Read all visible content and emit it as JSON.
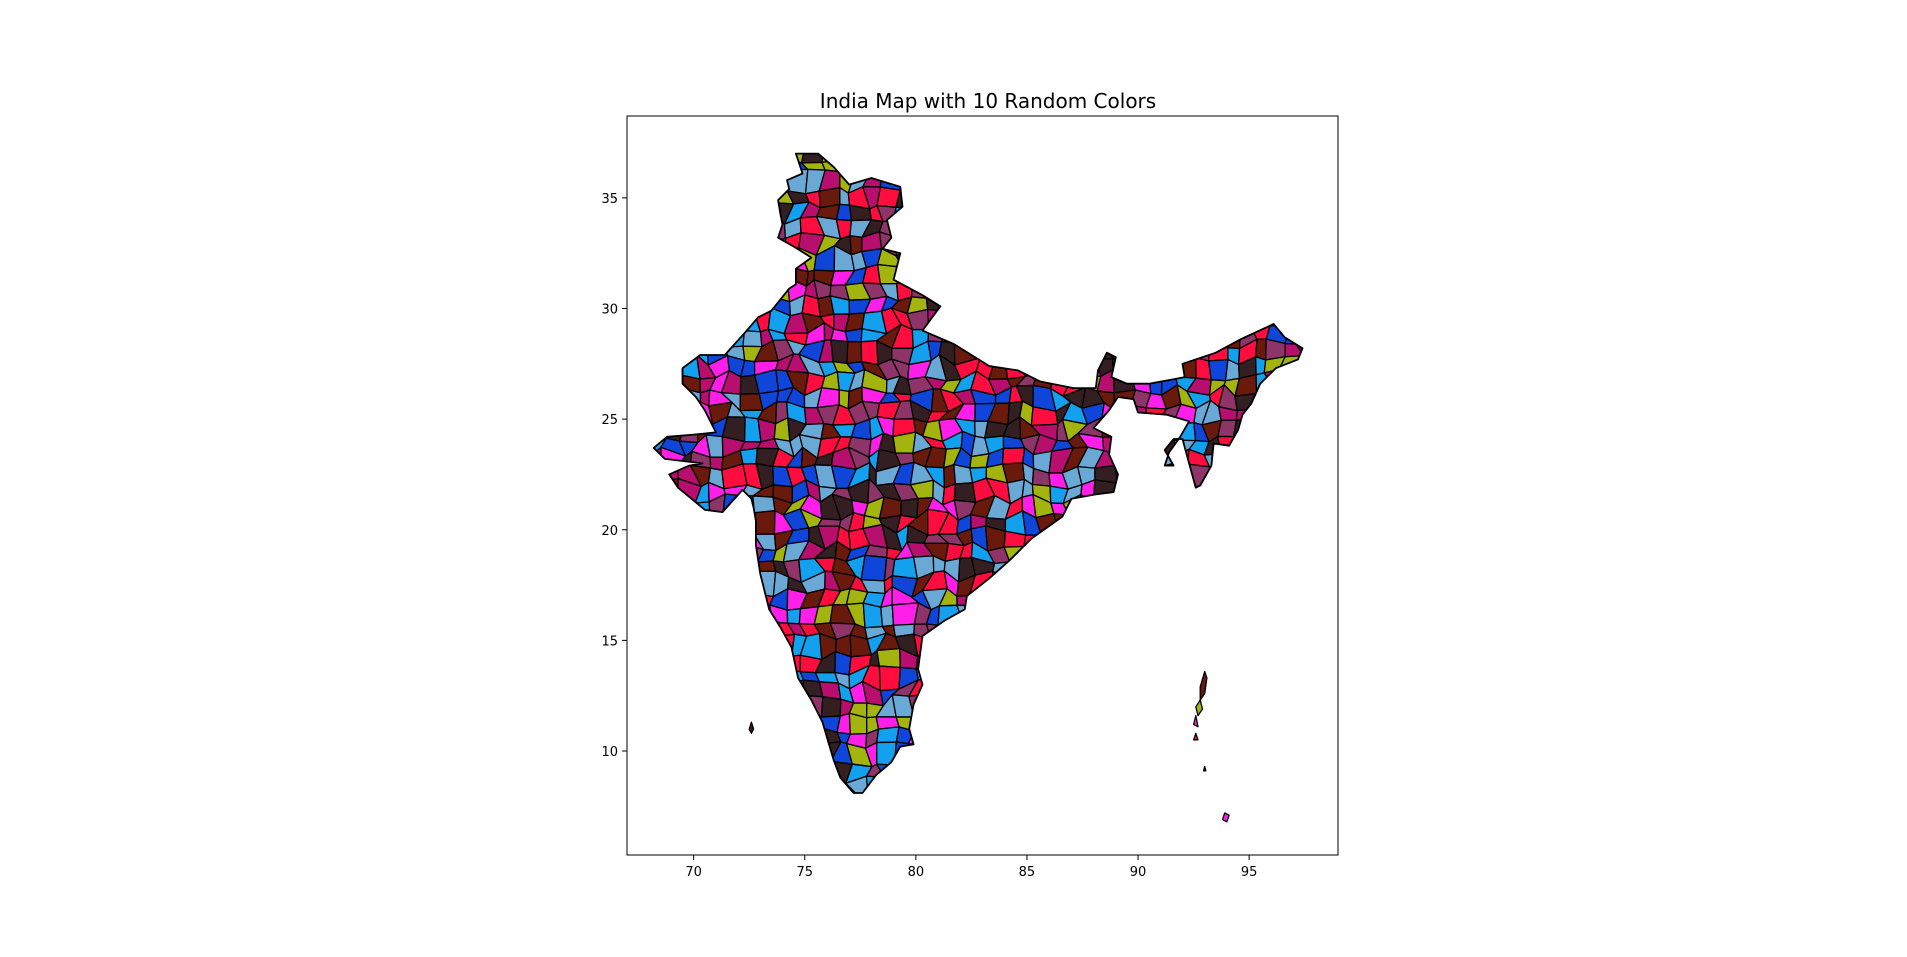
{
  "chart_data": {
    "type": "map",
    "title": "India Map with 10 Random Colors",
    "xlabel": "",
    "ylabel": "",
    "xlim": [
      67.0,
      99.0
    ],
    "ylim": [
      5.3,
      38.7
    ],
    "x_ticks": [
      70,
      75,
      80,
      85,
      90,
      95
    ],
    "y_ticks": [
      10,
      15,
      20,
      25,
      30,
      35
    ],
    "grid": false,
    "legend": "none",
    "palette": [
      "#ff0d3f",
      "#ff1fe8",
      "#0f45d8",
      "#a3b40f",
      "#6aa9d6",
      "#13a0ee",
      "#8e3468",
      "#b80e6e",
      "#6a1a0c",
      "#331e22"
    ],
    "edge_color": "#000000"
  }
}
